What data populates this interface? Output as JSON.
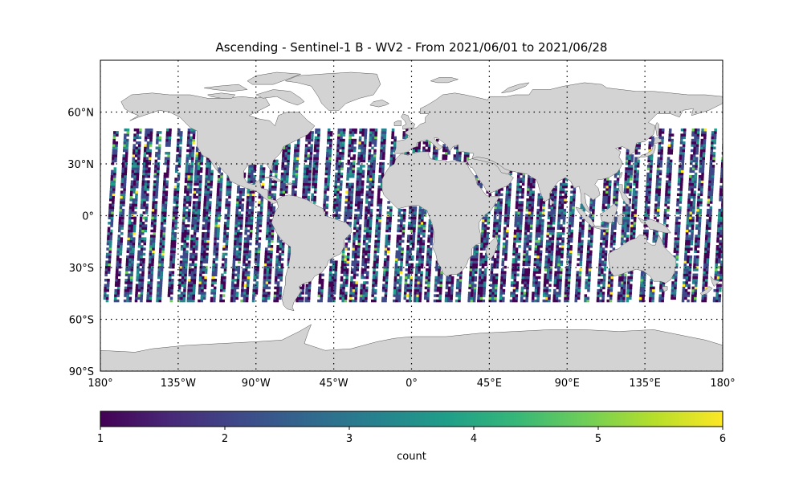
{
  "chart_data": {
    "type": "heatmap",
    "title": "Ascending - Sentinel-1 B - WV2 - From 2021/06/01 to 2021/06/28",
    "projection": "plate-carree",
    "xlim": [
      -180,
      180
    ],
    "ylim": [
      -90,
      90
    ],
    "x_ticks": [
      {
        "value": -180,
        "label": "180°"
      },
      {
        "value": -135,
        "label": "135°W"
      },
      {
        "value": -90,
        "label": "90°W"
      },
      {
        "value": -45,
        "label": "45°W"
      },
      {
        "value": 0,
        "label": "0°"
      },
      {
        "value": 45,
        "label": "45°E"
      },
      {
        "value": 90,
        "label": "90°E"
      },
      {
        "value": 135,
        "label": "135°E"
      },
      {
        "value": 180,
        "label": "180°"
      }
    ],
    "y_ticks": [
      {
        "value": 60,
        "label": "60°N"
      },
      {
        "value": 30,
        "label": "30°N"
      },
      {
        "value": 0,
        "label": "0°"
      },
      {
        "value": -30,
        "label": "30°S"
      },
      {
        "value": -60,
        "label": "60°S"
      },
      {
        "value": -90,
        "label": "90°S"
      }
    ],
    "grid": true,
    "data_extent": {
      "lat_min": -50,
      "lat_max": 50
    },
    "colorbar": {
      "label": "count",
      "min": 1,
      "max": 6,
      "ticks": [
        "1",
        "2",
        "3",
        "4",
        "5",
        "6"
      ],
      "colormap": "viridis",
      "orientation": "horizontal"
    },
    "colors": {
      "land": "#d3d3d3",
      "coast": "#555555",
      "grid": "#000000",
      "viridis": [
        "#440154",
        "#482878",
        "#3e4989",
        "#31688e",
        "#26828e",
        "#1f9e89",
        "#35b779",
        "#6ece58",
        "#b5de2b",
        "#fde725"
      ]
    }
  }
}
